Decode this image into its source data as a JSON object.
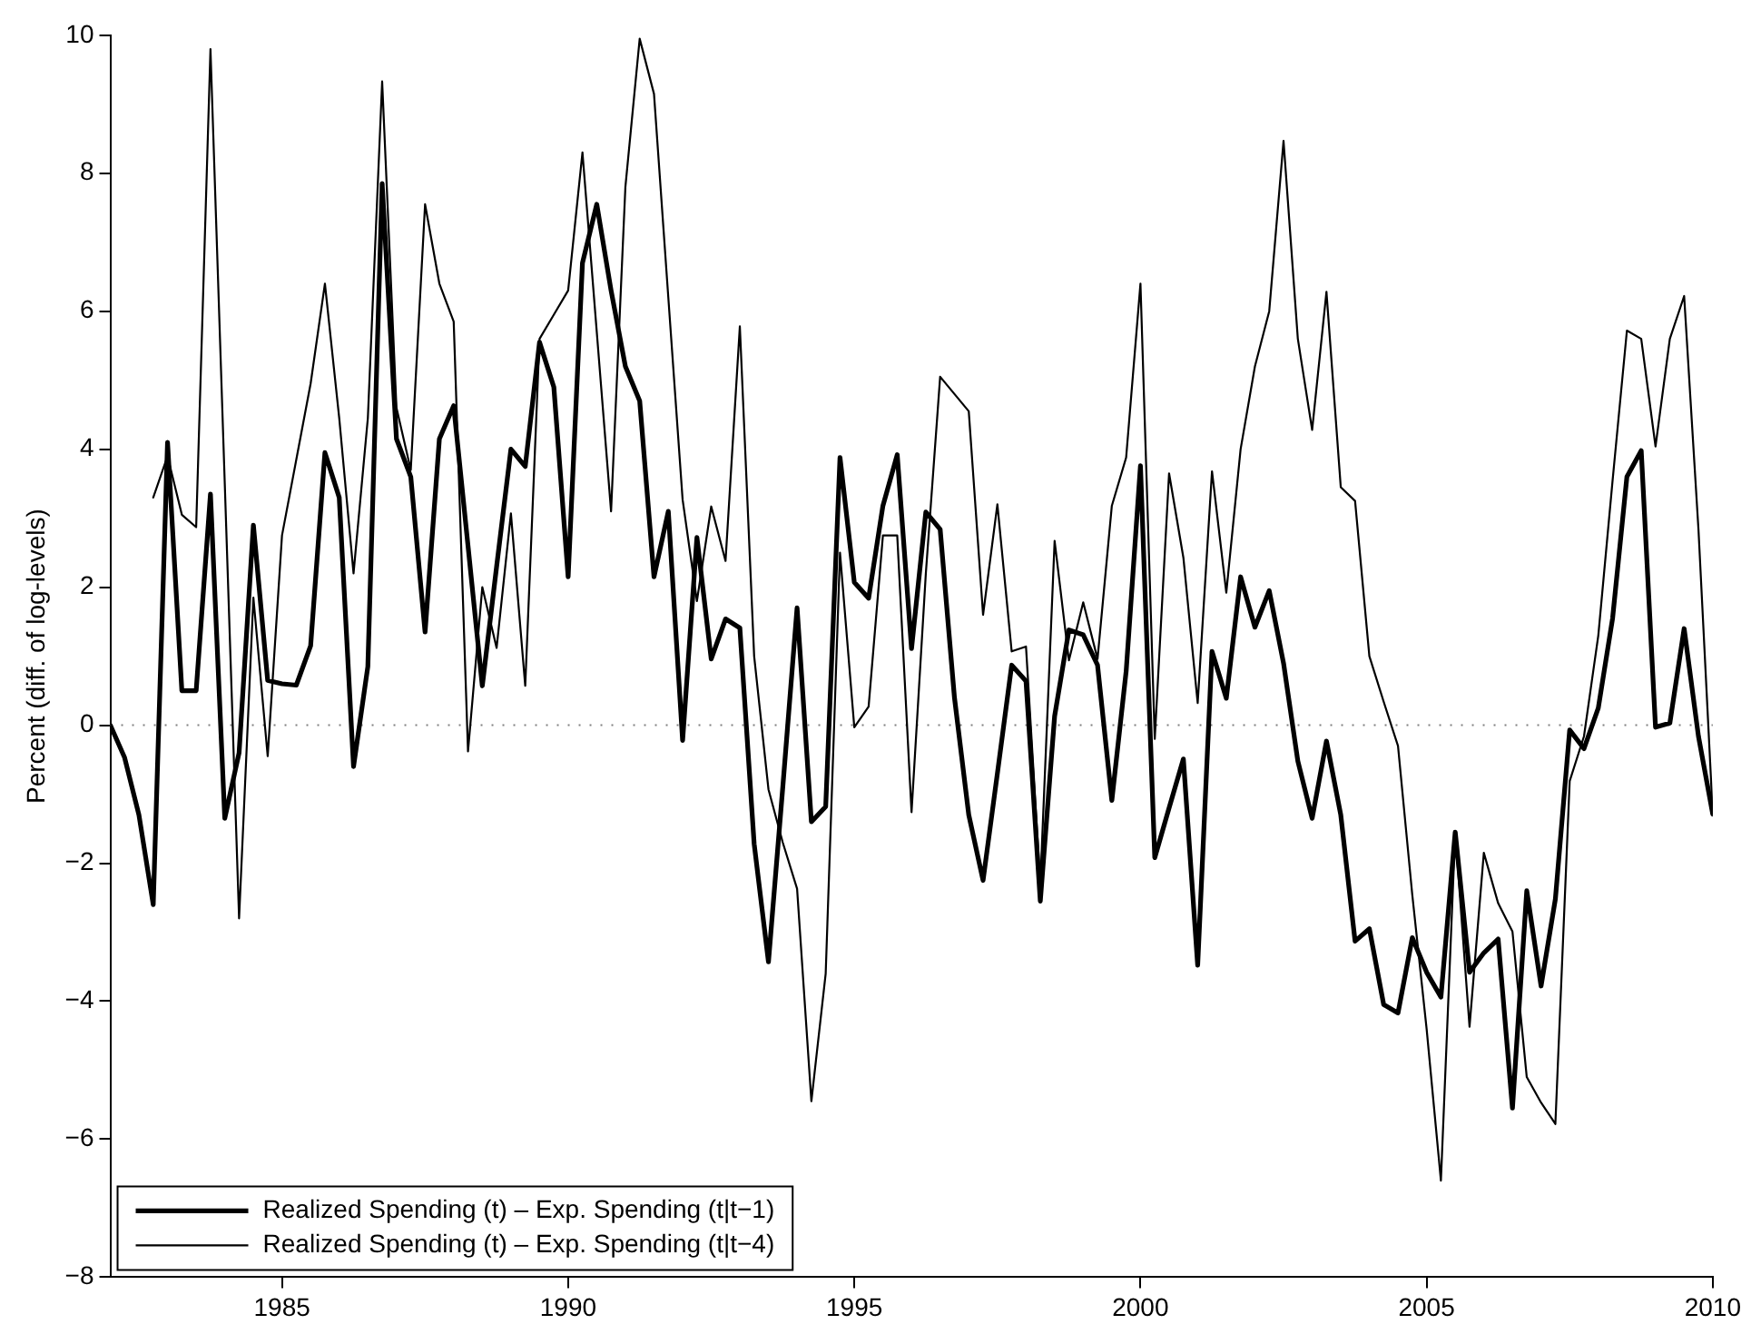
{
  "chart_data": {
    "type": "line",
    "ylabel": "Percent (diff. of log-levels)",
    "x": [
      1982,
      1982.25,
      1982.5,
      1982.75,
      1983,
      1983.25,
      1983.5,
      1983.75,
      1984,
      1984.25,
      1984.5,
      1984.75,
      1985,
      1985.25,
      1985.5,
      1985.75,
      1986,
      1986.25,
      1986.5,
      1986.75,
      1987,
      1987.25,
      1987.5,
      1987.75,
      1988,
      1988.25,
      1988.5,
      1988.75,
      1989,
      1989.25,
      1989.5,
      1989.75,
      1990,
      1990.25,
      1990.5,
      1990.75,
      1991,
      1991.25,
      1991.5,
      1991.75,
      1992,
      1992.25,
      1992.5,
      1992.75,
      1993,
      1993.25,
      1993.5,
      1993.75,
      1994,
      1994.25,
      1994.5,
      1994.75,
      1995,
      1995.25,
      1995.5,
      1995.75,
      1996,
      1996.25,
      1996.5,
      1996.75,
      1997,
      1997.25,
      1997.5,
      1997.75,
      1998,
      1998.25,
      1998.5,
      1998.75,
      1999,
      1999.25,
      1999.5,
      1999.75,
      2000,
      2000.25,
      2000.5,
      2000.75,
      2001,
      2001.25,
      2001.5,
      2001.75,
      2002,
      2002.25,
      2002.5,
      2002.75,
      2003,
      2003.25,
      2003.5,
      2003.75,
      2004,
      2004.25,
      2004.5,
      2004.75,
      2005,
      2005.25,
      2005.5,
      2005.75,
      2006,
      2006.25,
      2006.5,
      2006.75,
      2007,
      2007.25,
      2007.5,
      2007.75,
      2008,
      2008.25,
      2008.5,
      2008.75,
      2009,
      2009.25,
      2009.5,
      2009.75,
      2010
    ],
    "series": [
      {
        "name": "Realized Spending (t) – Exp. Spending (t|t−1)",
        "color": "#000000",
        "values": [
          0,
          -0.47,
          -1.3,
          -2.6,
          4.1,
          0.5,
          0.5,
          3.35,
          -1.35,
          -0.4,
          2.9,
          0.65,
          0.6,
          0.58,
          1.15,
          3.95,
          3.3,
          -0.6,
          0.85,
          7.85,
          4.15,
          3.6,
          1.35,
          4.15,
          4.63,
          2.6,
          0.57,
          2.3,
          4.0,
          3.75,
          5.55,
          4.9,
          2.15,
          6.7,
          7.55,
          6.3,
          5.2,
          4.7,
          2.15,
          3.1,
          -0.22,
          2.72,
          0.96,
          1.54,
          1.41,
          -1.72,
          -3.43,
          -0.9,
          1.7,
          -1.4,
          -1.18,
          3.88,
          2.07,
          1.84,
          3.18,
          3.92,
          1.11,
          3.09,
          2.84,
          0.4,
          -1.3,
          -2.25,
          -0.7,
          0.87,
          0.64,
          -2.55,
          0.13,
          1.38,
          1.31,
          0.87,
          -1.09,
          0.78,
          3.76,
          -1.92,
          -1.2,
          -0.49,
          -3.48,
          1.07,
          0.39,
          2.15,
          1.42,
          1.95,
          0.9,
          -0.52,
          -1.35,
          -0.23,
          -1.3,
          -3.13,
          -2.95,
          -4.05,
          -4.17,
          -3.08,
          -3.58,
          -3.94,
          -1.55,
          -3.58,
          -3.3,
          -3.1,
          -5.55,
          -2.4,
          -3.78,
          -2.52,
          -0.07,
          -0.34,
          0.25,
          1.55,
          3.6,
          3.98,
          -0.03,
          0.03,
          1.4,
          -0.16,
          -1.29
        ]
      },
      {
        "name": "Realized Spending (t) – Exp. Spending (t|t−4)",
        "color": "#000000",
        "values": [
          null,
          null,
          null,
          3.3,
          3.9,
          3.05,
          2.87,
          9.8,
          3.5,
          -2.8,
          1.85,
          -0.45,
          2.75,
          3.85,
          4.95,
          6.4,
          4.45,
          2.2,
          4.45,
          9.33,
          4.6,
          3.7,
          7.55,
          6.4,
          5.85,
          -0.38,
          2.0,
          1.12,
          3.07,
          0.57,
          5.6,
          5.95,
          6.3,
          8.3,
          5.7,
          3.1,
          7.8,
          9.95,
          9.15,
          6.2,
          3.27,
          1.8,
          3.17,
          2.38,
          5.78,
          1.0,
          -0.93,
          -1.7,
          -2.37,
          -5.45,
          -3.6,
          2.5,
          -0.03,
          0.27,
          2.75,
          2.75,
          -1.26,
          2.2,
          5.05,
          4.8,
          4.55,
          1.6,
          3.2,
          1.07,
          1.14,
          -2.3,
          2.67,
          0.94,
          1.78,
          0.96,
          3.18,
          3.88,
          6.4,
          -0.2,
          3.65,
          2.43,
          0.32,
          3.68,
          1.92,
          4.0,
          5.2,
          6.0,
          8.47,
          5.6,
          4.28,
          6.28,
          3.45,
          3.25,
          1.0,
          0.34,
          -0.3,
          -2.46,
          -4.4,
          -6.6,
          -1.55,
          -4.37,
          -1.85,
          -2.58,
          -2.99,
          -5.1,
          -5.47,
          -5.78,
          -0.81,
          -0.16,
          1.3,
          3.55,
          5.72,
          5.6,
          4.04,
          5.6,
          6.22,
          2.84,
          -1.29
        ]
      }
    ],
    "xlim": [
      1982,
      2010
    ],
    "xticks": [
      1985,
      1990,
      1995,
      2000,
      2005,
      2010
    ],
    "ylim": [
      -8,
      10
    ],
    "yticks": [
      -8,
      -6,
      -4,
      -2,
      0,
      2,
      4,
      6,
      8,
      10
    ],
    "ref_lines": [
      {
        "axis": "y",
        "value": 0,
        "color": "#808080",
        "line_style": "dotted"
      }
    ],
    "grid": false,
    "legend": "bottom left",
    "marker": "none",
    "line_style": "solid"
  }
}
